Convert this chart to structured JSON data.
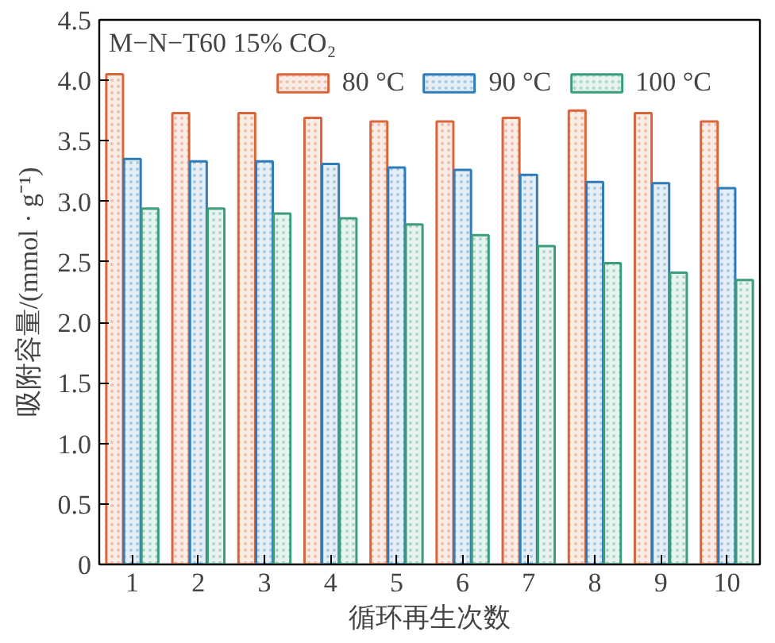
{
  "chart_data": {
    "type": "bar",
    "title": "M−N−T60 15% CO₂",
    "xlabel": "循环再生次数",
    "ylabel": "吸附容量/(mmol · g⁻¹)",
    "categories": [
      "1",
      "2",
      "3",
      "4",
      "5",
      "6",
      "7",
      "8",
      "9",
      "10"
    ],
    "series": [
      {
        "name": "80 °C",
        "color": "#d9663a",
        "values": [
          4.05,
          3.73,
          3.73,
          3.69,
          3.66,
          3.66,
          3.69,
          3.75,
          3.73,
          3.66
        ]
      },
      {
        "name": "90 °C",
        "color": "#2f7cb8",
        "values": [
          3.35,
          3.33,
          3.33,
          3.31,
          3.28,
          3.26,
          3.22,
          3.16,
          3.15,
          3.11
        ]
      },
      {
        "name": "100 °C",
        "color": "#3a9f78",
        "values": [
          2.94,
          2.94,
          2.9,
          2.86,
          2.81,
          2.72,
          2.63,
          2.49,
          2.41,
          2.35
        ]
      }
    ],
    "ylim": [
      0,
      4.5
    ],
    "yticks": [
      0,
      {
        "value": 0.5,
        "label": "0.5"
      },
      {
        "value": 1,
        "label": "1.0"
      },
      {
        "value": 1.5,
        "label": "1.5"
      },
      {
        "value": 2,
        "label": "2.0"
      },
      {
        "value": 2.5,
        "label": "2.5"
      },
      {
        "value": 3,
        "label": "3.0"
      },
      {
        "value": 3.5,
        "label": "3.5"
      },
      {
        "value": 4,
        "label": "4.0"
      },
      {
        "value": 4.5,
        "label": "4.5"
      }
    ],
    "grid": false,
    "legend": "top right"
  }
}
